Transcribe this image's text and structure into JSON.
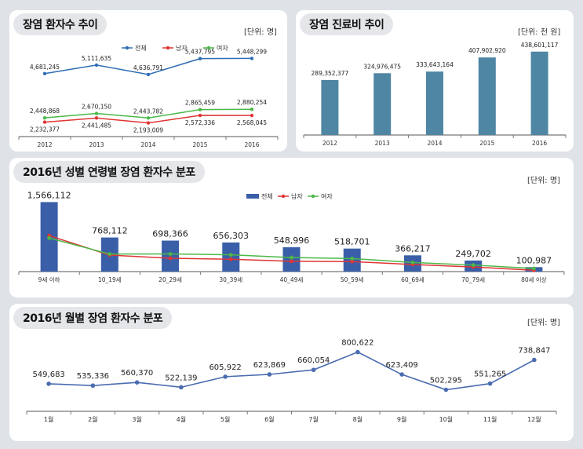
{
  "titles": {
    "patients_trend": "장염 환자수 추이",
    "cost_trend": "장염 진료비 추이",
    "age_gender": "2016년 성별 연령별 장염 환자수 분포",
    "monthly": "2016년 월별 장염 환자수 분포"
  },
  "units": {
    "patients_trend": "[단위: 명]",
    "cost_trend": "[단위: 천 원]",
    "age_gender": "[단위: 명]",
    "monthly": "[단위: 명]"
  },
  "chart_data": [
    {
      "type": "line",
      "title": "장염 환자수 추이",
      "x": [
        "2012",
        "2013",
        "2014",
        "2015",
        "2016"
      ],
      "series": [
        {
          "name": "전체",
          "values": [
            4681245,
            5111635,
            4636791,
            5437795,
            5448299
          ],
          "labels": [
            "4,681,245",
            "5,111,635",
            "4,636,791",
            "5,437,795",
            "5,448,299"
          ],
          "color": "#2e6db4"
        },
        {
          "name": "남자",
          "values": [
            2232377,
            2441485,
            2193009,
            2572336,
            2568045
          ],
          "labels": [
            "2,232,377",
            "2,441,485",
            "2,193,009",
            "2,572,336",
            "2,568,045"
          ],
          "color": "#e03535"
        },
        {
          "name": "여자",
          "values": [
            2448868,
            2670150,
            2443782,
            2865459,
            2880254
          ],
          "labels": [
            "2,448,868",
            "2,670,150",
            "2,443,782",
            "2,865,459",
            "2,880,254"
          ],
          "color": "#4cb848"
        }
      ],
      "legend": "top-center"
    },
    {
      "type": "bar",
      "title": "장염 진료비 추이",
      "categories": [
        "2012",
        "2013",
        "2014",
        "2015",
        "2016"
      ],
      "values": [
        289352377,
        324976475,
        333643164,
        407902920,
        438601117
      ],
      "labels": [
        "289,352,377",
        "324,976,475",
        "333,643,164",
        "407,902,920",
        "438,601,117"
      ],
      "color": "#4e86a3"
    },
    {
      "type": "bar",
      "title": "2016년 성별 연령별 장염 환자수 분포",
      "categories": [
        "9세 이하",
        "10_19세",
        "20_29세",
        "30_39세",
        "40_49세",
        "50_59세",
        "60_69세",
        "70_79세",
        "80세 이상"
      ],
      "series": [
        {
          "name": "전체",
          "type": "bar",
          "values": [
            1566112,
            768112,
            698366,
            656303,
            548996,
            518701,
            366217,
            249702,
            100987
          ],
          "labels": [
            "1,566,112",
            "768,112",
            "698,366",
            "656,303",
            "548,996",
            "518,701",
            "366,217",
            "249,702",
            "100,987"
          ],
          "color": "#3a5fa8"
        },
        {
          "name": "남자",
          "type": "line",
          "values": [
            810000,
            372000,
            300000,
            278000,
            232000,
            226000,
            160000,
            103000,
            30000
          ],
          "color": "#e03535"
        },
        {
          "name": "여자",
          "type": "line",
          "values": [
            756000,
            396000,
            398000,
            378000,
            317000,
            293000,
            206000,
            147000,
            71000
          ],
          "color": "#4cb848"
        }
      ],
      "legend": "top-center"
    },
    {
      "type": "line",
      "title": "2016년 월별 장염 환자수 분포",
      "x": [
        "1월",
        "2월",
        "3월",
        "4월",
        "5월",
        "6월",
        "7월",
        "8월",
        "9월",
        "10월",
        "11월",
        "12월"
      ],
      "values": [
        549683,
        535336,
        560370,
        522139,
        605922,
        623869,
        660054,
        800622,
        623409,
        502295,
        551265,
        738847
      ],
      "labels": [
        "549,683",
        "535,336",
        "560,370",
        "522,139",
        "605,922",
        "623,869",
        "660,054",
        "800,622",
        "623,409",
        "502,295",
        "551,265",
        "738,847"
      ],
      "color": "#4a6cb0"
    }
  ]
}
